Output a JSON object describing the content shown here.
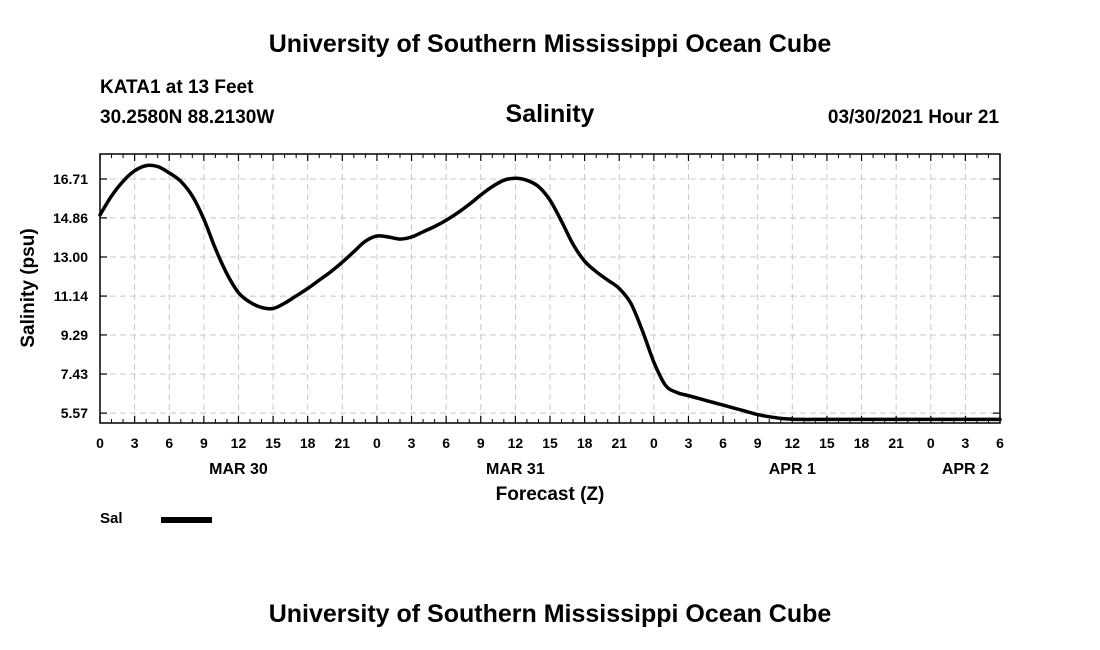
{
  "header": {
    "title": "University of Southern Mississippi Ocean Cube",
    "station": "KATA1 at 13 Feet",
    "coordinates": "30.2580N  88.2130W",
    "chart_title": "Salinity",
    "datetime": "03/30/2021 Hour 21"
  },
  "footer": {
    "title": "University of Southern Mississippi Ocean Cube"
  },
  "colors": {
    "line": "#000000",
    "grid": "#c8c8c8",
    "frame": "#000000"
  },
  "chart_data": {
    "type": "line",
    "title": "Salinity",
    "xlabel": "Forecast (Z)",
    "ylabel": "Salinity (psu)",
    "x_unit": "hours since 2021-03-30 00Z",
    "xlim": [
      0,
      78
    ],
    "ylim": [
      5.1,
      17.9
    ],
    "yticks": [
      5.57,
      7.43,
      9.29,
      11.14,
      13.0,
      14.86,
      16.71
    ],
    "ytick_labels": [
      "5.57",
      "7.43",
      "9.29",
      "11.14",
      "13.00",
      "14.86",
      "16.71"
    ],
    "xticks": [
      0,
      3,
      6,
      9,
      12,
      15,
      18,
      21,
      24,
      27,
      30,
      33,
      36,
      39,
      42,
      45,
      48,
      51,
      54,
      57,
      60,
      63,
      66,
      69,
      72,
      75,
      78
    ],
    "xtick_labels": [
      "0",
      "3",
      "6",
      "9",
      "12",
      "15",
      "18",
      "21",
      "0",
      "3",
      "6",
      "9",
      "12",
      "15",
      "18",
      "21",
      "0",
      "3",
      "6",
      "9",
      "12",
      "15",
      "18",
      "21",
      "0",
      "3",
      "6"
    ],
    "date_labels": [
      {
        "label": "MAR 30",
        "hour": 12
      },
      {
        "label": "MAR 31",
        "hour": 36
      },
      {
        "label": "APR 1",
        "hour": 60
      },
      {
        "label": "APR 2",
        "hour": 75
      }
    ],
    "grid": true,
    "legend": {
      "position": "bottom-left",
      "entries": [
        "Sal"
      ]
    },
    "series": [
      {
        "name": "Sal",
        "x": [
          0,
          1,
          2,
          3,
          4,
          5,
          6,
          7,
          8,
          9,
          10,
          11,
          12,
          13,
          14,
          15,
          16,
          17,
          18,
          19,
          20,
          21,
          22,
          23,
          24,
          25,
          26,
          27,
          28,
          29,
          30,
          31,
          32,
          33,
          34,
          35,
          36,
          37,
          38,
          39,
          40,
          41,
          42,
          43,
          44,
          45,
          46,
          47,
          48,
          49,
          50,
          51,
          52,
          53,
          54,
          55,
          56,
          57,
          58,
          59,
          60,
          61,
          62,
          63,
          64,
          65,
          66,
          67,
          68,
          69,
          70,
          71,
          72,
          73,
          74,
          75,
          76,
          77,
          78
        ],
        "values": [
          15.0,
          15.9,
          16.6,
          17.1,
          17.35,
          17.3,
          17.0,
          16.6,
          15.9,
          14.8,
          13.4,
          12.2,
          11.3,
          10.85,
          10.6,
          10.55,
          10.8,
          11.15,
          11.5,
          11.9,
          12.3,
          12.75,
          13.25,
          13.75,
          14.0,
          13.95,
          13.85,
          13.95,
          14.2,
          14.45,
          14.75,
          15.1,
          15.5,
          15.95,
          16.35,
          16.65,
          16.75,
          16.65,
          16.35,
          15.7,
          14.7,
          13.6,
          12.8,
          12.3,
          11.9,
          11.5,
          10.8,
          9.5,
          8.0,
          6.9,
          6.55,
          6.4,
          6.25,
          6.1,
          5.95,
          5.8,
          5.65,
          5.5,
          5.4,
          5.32,
          5.28,
          5.27,
          5.27,
          5.27,
          5.27,
          5.27,
          5.27,
          5.27,
          5.27,
          5.27,
          5.27,
          5.27,
          5.27,
          5.27,
          5.27,
          5.27,
          5.27,
          5.27,
          5.27
        ]
      }
    ]
  }
}
